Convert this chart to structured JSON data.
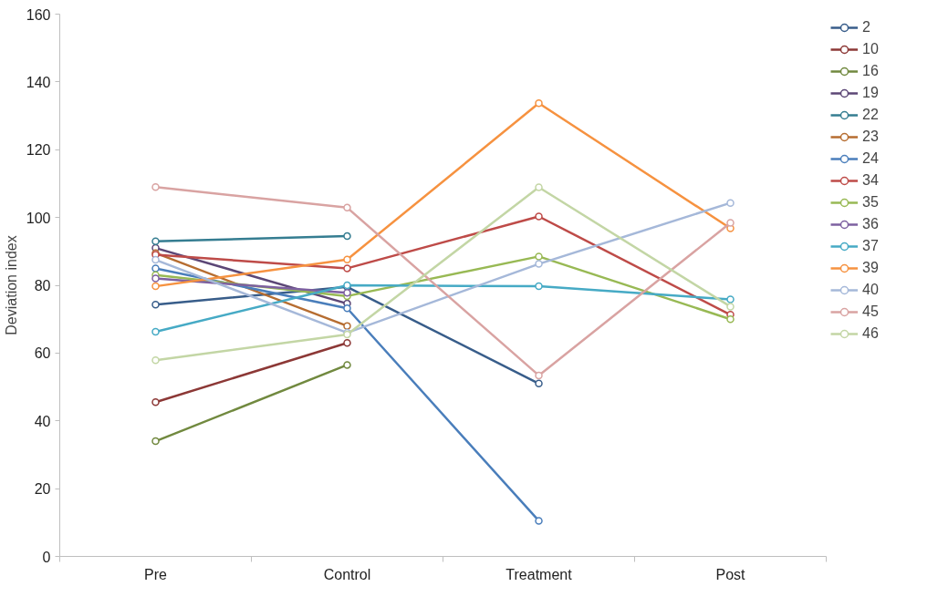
{
  "chart_data": {
    "type": "line",
    "ylabel": "Deviation index",
    "categories": [
      "Pre",
      "Control",
      "Treatment",
      "Post"
    ],
    "ylim": [
      0,
      160
    ],
    "yticks": [
      0,
      20,
      40,
      60,
      80,
      100,
      120,
      140,
      160
    ],
    "grid": false,
    "legend": "right",
    "marker": "circle",
    "series": [
      {
        "name": "2",
        "color": "#385d8a",
        "values": [
          74.3,
          79.5,
          51,
          null
        ]
      },
      {
        "name": "10",
        "color": "#8c3836",
        "values": [
          45.5,
          63,
          null,
          null
        ]
      },
      {
        "name": "16",
        "color": "#71893f",
        "values": [
          34,
          56.5,
          null,
          null
        ]
      },
      {
        "name": "19",
        "color": "#5c4776",
        "values": [
          91,
          74.6,
          null,
          null
        ]
      },
      {
        "name": "22",
        "color": "#357d91",
        "values": [
          93,
          94.5,
          null,
          null
        ]
      },
      {
        "name": "23",
        "color": "#b66d31",
        "values": [
          89.5,
          68,
          null,
          null
        ]
      },
      {
        "name": "24",
        "color": "#4a7ebb",
        "values": [
          85,
          73.2,
          10.5,
          null
        ]
      },
      {
        "name": "34",
        "color": "#be4b48",
        "values": [
          89,
          85,
          100.3,
          71.3
        ]
      },
      {
        "name": "35",
        "color": "#98b954",
        "values": [
          83,
          76.8,
          88.5,
          70
        ]
      },
      {
        "name": "36",
        "color": "#7d60a0",
        "values": [
          82,
          77.8,
          null,
          null
        ]
      },
      {
        "name": "37",
        "color": "#46aac5",
        "values": [
          66.3,
          80,
          79.7,
          75.8
        ]
      },
      {
        "name": "39",
        "color": "#f69240",
        "values": [
          79.7,
          87.6,
          133.7,
          96.8
        ]
      },
      {
        "name": "40",
        "color": "#a5b8d9",
        "values": [
          87.5,
          66,
          86.3,
          104.3
        ]
      },
      {
        "name": "45",
        "color": "#d9a3a2",
        "values": [
          109,
          102.9,
          53.4,
          98.4
        ]
      },
      {
        "name": "46",
        "color": "#c3d6a5",
        "values": [
          57.9,
          65.5,
          108.9,
          73.7
        ]
      }
    ]
  }
}
